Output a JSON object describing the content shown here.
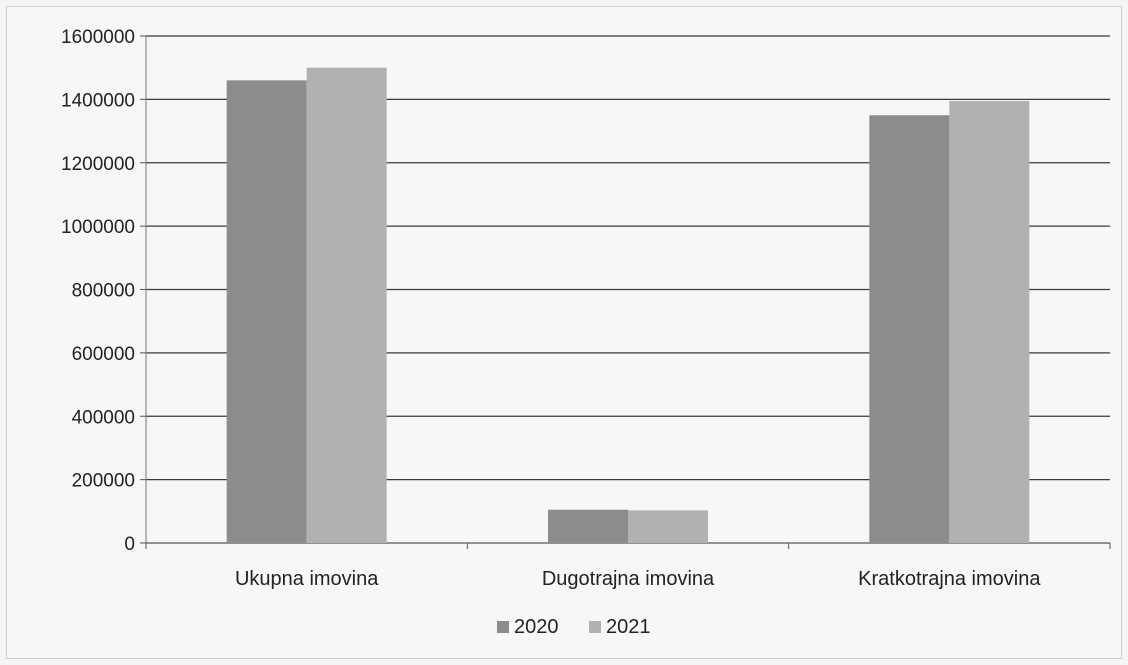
{
  "chart_data": {
    "type": "bar",
    "title": "",
    "xlabel": "",
    "ylabel": "",
    "categories": [
      "Ukupna imovina",
      "Dugotrajna imovina",
      "Kratkotrajna imovina"
    ],
    "series": [
      {
        "name": "2020",
        "values": [
          1460000,
          105000,
          1350000
        ],
        "color": "#8c8c8c"
      },
      {
        "name": "2021",
        "values": [
          1500000,
          103000,
          1395000
        ],
        "color": "#b1b1b1"
      }
    ],
    "ylim": [
      0,
      1600000
    ],
    "yticks": [
      0,
      200000,
      400000,
      600000,
      800000,
      1000000,
      1200000,
      1400000,
      1600000
    ],
    "ytick_labels": [
      "0",
      "200000",
      "400000",
      "600000",
      "800000",
      "1000000",
      "1200000",
      "1400000",
      "1600000"
    ],
    "grid": true,
    "legend_position": "bottom"
  }
}
